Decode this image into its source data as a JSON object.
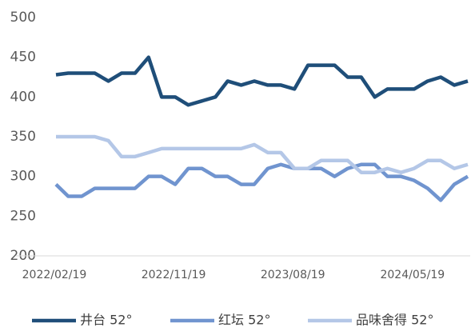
{
  "chart_data": {
    "type": "line",
    "x": [
      "2022/02/19",
      "2022/03/19",
      "2022/04/19",
      "2022/05/19",
      "2022/06/19",
      "2022/07/19",
      "2022/08/19",
      "2022/09/19",
      "2022/10/19",
      "2022/11/19",
      "2022/12/19",
      "2023/01/19",
      "2023/02/19",
      "2023/03/19",
      "2023/04/19",
      "2023/05/19",
      "2023/06/19",
      "2023/07/19",
      "2023/08/19",
      "2023/09/19",
      "2023/10/19",
      "2023/11/19",
      "2023/12/19",
      "2024/01/19",
      "2024/02/19",
      "2024/03/19",
      "2024/04/19",
      "2024/05/19",
      "2024/06/19",
      "2024/07/19",
      "2024/08/19",
      "2024/09/19"
    ],
    "series": [
      {
        "name": "井台 52°",
        "color": "#1f4e79",
        "values": [
          428,
          430,
          430,
          430,
          420,
          430,
          430,
          450,
          400,
          400,
          390,
          395,
          400,
          420,
          415,
          420,
          415,
          415,
          410,
          440,
          440,
          440,
          425,
          425,
          400,
          410,
          410,
          410,
          420,
          425,
          415,
          420
        ]
      },
      {
        "name": "红坛 52°",
        "color": "#7094cf",
        "values": [
          290,
          275,
          275,
          285,
          285,
          285,
          285,
          300,
          300,
          290,
          310,
          310,
          300,
          300,
          290,
          290,
          310,
          315,
          310,
          310,
          310,
          300,
          310,
          315,
          315,
          300,
          300,
          295,
          285,
          270,
          290,
          300
        ]
      },
      {
        "name": "品味舍得 52°",
        "color": "#b4c7e7",
        "values": [
          350,
          350,
          350,
          350,
          345,
          325,
          325,
          330,
          335,
          335,
          335,
          335,
          335,
          335,
          335,
          340,
          330,
          330,
          310,
          310,
          320,
          320,
          320,
          305,
          305,
          310,
          305,
          310,
          320,
          320,
          310,
          315
        ]
      }
    ],
    "xlim": [
      "2022/02/19",
      "2024/09/19"
    ],
    "xticks": [
      "2022/02/19",
      "2022/11/19",
      "2023/08/19",
      "2024/05/19"
    ],
    "ylim": [
      200,
      500
    ],
    "yticks": [
      200,
      250,
      300,
      350,
      400,
      450,
      500
    ],
    "legend": "bottom"
  }
}
